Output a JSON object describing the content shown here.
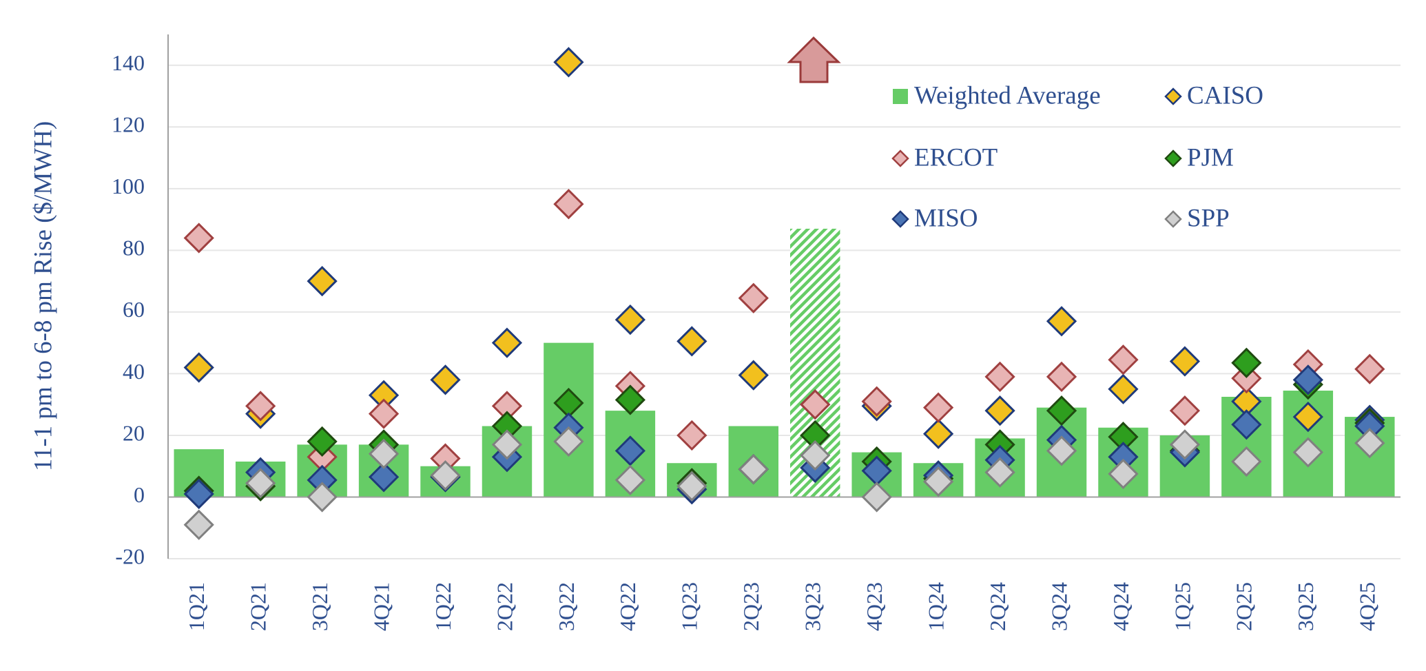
{
  "chart_data": {
    "type": "bar",
    "y_label": "11-1 pm to 6-8 pm Rise ($/MWH)",
    "categories": [
      "1Q21",
      "2Q21",
      "3Q21",
      "4Q21",
      "1Q22",
      "2Q22",
      "3Q22",
      "4Q22",
      "1Q23",
      "2Q23",
      "3Q23",
      "4Q23",
      "1Q24",
      "2Q24",
      "3Q24",
      "4Q24",
      "1Q25",
      "2Q25",
      "3Q25",
      "4Q25"
    ],
    "hatched": [
      "3Q23"
    ],
    "ylim": [
      -20,
      150
    ],
    "yticks": [
      -20,
      0,
      20,
      40,
      60,
      80,
      100,
      120,
      140
    ],
    "grid": true,
    "series": [
      {
        "name": "Weighted Average",
        "type": "bar",
        "color": "#66cc66",
        "values": [
          15.5,
          11.5,
          17,
          17,
          10,
          23,
          50,
          28,
          11,
          23,
          87,
          14.5,
          11,
          19,
          29,
          22.5,
          20,
          32.5,
          34.5,
          26
        ]
      },
      {
        "name": "CAISO",
        "type": "scatter",
        "color": "#f2c01e",
        "edgecolor": "#1f3a7a",
        "values": [
          42,
          27,
          70,
          33,
          38,
          50,
          141,
          57.5,
          50.5,
          39.5,
          30,
          29.5,
          20.5,
          28,
          57,
          35,
          44,
          31,
          26,
          25
        ]
      },
      {
        "name": "ERCOT",
        "type": "scatter",
        "color": "#e8b4b4",
        "edgecolor": "#a04040",
        "values": [
          84,
          29.5,
          13,
          27,
          12.5,
          29.5,
          95,
          36,
          20,
          64.5,
          30,
          31,
          29,
          39,
          39,
          44.5,
          28,
          38.5,
          43,
          41.5
        ]
      },
      {
        "name": "PJM",
        "type": "scatter",
        "color": "#2e9e1e",
        "edgecolor": "#1f4a10",
        "values": [
          2,
          3.5,
          18,
          17,
          6.5,
          23,
          30.5,
          31.5,
          4.5,
          9,
          20,
          11.5,
          6,
          17,
          28,
          19.5,
          15,
          43.5,
          36.5,
          24
        ]
      },
      {
        "name": "MISO",
        "type": "scatter",
        "color": "#4a74b4",
        "edgecolor": "#1f3a7a",
        "values": [
          1,
          8,
          5.5,
          6.5,
          6.5,
          13,
          22.5,
          15,
          2.5,
          9,
          9.5,
          8.5,
          7,
          12,
          18.5,
          13,
          14.5,
          23.5,
          38,
          23
        ]
      },
      {
        "name": "SPP",
        "type": "scatter",
        "color": "#d0d0d0",
        "edgecolor": "#808080",
        "values": [
          -9,
          4.5,
          0,
          14,
          7,
          17,
          18,
          5.5,
          3.5,
          9,
          13.5,
          0,
          5,
          8,
          15,
          7.5,
          17,
          11.5,
          14.5,
          17.5
        ]
      }
    ]
  }
}
